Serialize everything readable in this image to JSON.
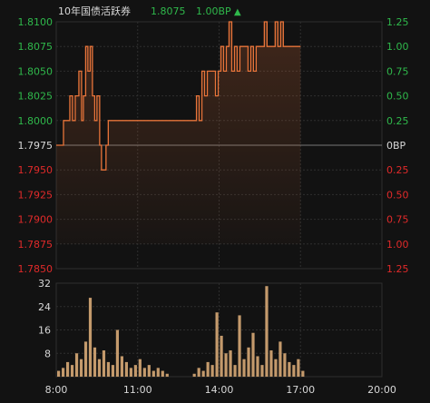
{
  "header": {
    "name": "10年国债活跃券",
    "price": "1.8075",
    "change": "1.00BP",
    "arrow": "▲"
  },
  "colors": {
    "background": "#121212",
    "grid": "#2e2e2e",
    "up": "#2fb84b",
    "down": "#e02a2a",
    "line": "#e8743a",
    "volume": "#c49a6c",
    "text": "#d8d8d8"
  },
  "chart_data": [
    {
      "type": "line",
      "x_labels": [
        "8:00",
        "11:00",
        "14:00",
        "17:00",
        "20:00"
      ],
      "ylim": [
        1.785,
        1.81
      ],
      "y_ticks_left": [
        "1.8100",
        "1.8075",
        "1.8050",
        "1.8025",
        "1.8000",
        "1.7975",
        "1.7950",
        "1.7925",
        "1.7900",
        "1.7875",
        "1.7850"
      ],
      "y_ticks_right": [
        "1.25",
        "1.00",
        "0.75",
        "0.50",
        "0.25",
        "0BP",
        "0.25",
        "0.50",
        "0.75",
        "1.00",
        "1.25"
      ],
      "reference_value": 1.7975,
      "series": [
        {
          "x": [
            "8:00",
            "8:10",
            "8:16",
            "8:22",
            "8:30",
            "8:36",
            "8:42",
            "8:50",
            "8:56",
            "9:00",
            "9:05",
            "9:10",
            "9:15",
            "9:20",
            "9:25",
            "9:30",
            "9:36",
            "9:40",
            "9:45",
            "9:50",
            "9:55",
            "10:00",
            "10:06",
            "10:12",
            "10:18",
            "10:24",
            "10:30",
            "10:36",
            "10:42",
            "10:48",
            "10:54",
            "11:00",
            "11:06",
            "11:12",
            "11:18",
            "11:24",
            "11:30",
            "11:36",
            "11:42",
            "11:48",
            "11:54",
            "12:00",
            "12:30",
            "13:00",
            "13:10",
            "13:16",
            "13:22",
            "13:28",
            "13:34",
            "13:40",
            "13:46",
            "13:52",
            "13:58",
            "14:04",
            "14:10",
            "14:16",
            "14:22",
            "14:28",
            "14:34",
            "14:40",
            "14:46",
            "14:52",
            "14:58",
            "15:04",
            "15:10",
            "15:16",
            "15:22",
            "15:28",
            "15:34",
            "15:40",
            "15:46",
            "15:52",
            "15:58",
            "16:04",
            "16:10",
            "16:16",
            "16:22",
            "16:28",
            "16:34",
            "16:40",
            "16:46",
            "16:52",
            "16:58",
            "17:00"
          ],
          "y": [
            1.7975,
            1.7975,
            1.8,
            1.8,
            1.8025,
            1.8,
            1.8025,
            1.805,
            1.8,
            1.8025,
            1.8075,
            1.805,
            1.8075,
            1.8025,
            1.8,
            1.8025,
            1.7975,
            1.795,
            1.795,
            1.7975,
            1.8,
            1.8,
            1.8,
            1.8,
            1.8,
            1.8,
            1.8,
            1.8,
            1.8,
            1.8,
            1.8,
            1.8,
            1.8,
            1.8,
            1.8,
            1.8,
            1.8,
            1.8,
            1.8,
            1.8,
            1.8,
            1.8,
            1.8,
            1.8,
            1.8025,
            1.8,
            1.805,
            1.8025,
            1.805,
            1.805,
            1.805,
            1.8025,
            1.805,
            1.8075,
            1.805,
            1.8075,
            1.81,
            1.805,
            1.8075,
            1.805,
            1.8075,
            1.8075,
            1.8075,
            1.805,
            1.8075,
            1.805,
            1.8075,
            1.8075,
            1.8075,
            1.81,
            1.8075,
            1.8075,
            1.8075,
            1.81,
            1.8075,
            1.81,
            1.8075,
            1.8075,
            1.8075,
            1.8075,
            1.8075,
            1.8075,
            1.8075,
            1.8075
          ]
        }
      ]
    },
    {
      "type": "bar",
      "ylim": [
        0,
        32
      ],
      "y_ticks": [
        "32",
        "24",
        "16",
        "8"
      ],
      "x_labels": [
        "8:00",
        "11:00",
        "14:00",
        "17:00",
        "20:00"
      ],
      "categories": [
        "8:00",
        "8:10",
        "8:20",
        "8:30",
        "8:40",
        "8:50",
        "9:00",
        "9:10",
        "9:20",
        "9:30",
        "9:40",
        "9:50",
        "10:00",
        "10:10",
        "10:20",
        "10:30",
        "10:40",
        "10:50",
        "11:00",
        "11:10",
        "11:20",
        "11:30",
        "11:40",
        "11:50",
        "12:00",
        "13:00",
        "13:10",
        "13:20",
        "13:30",
        "13:40",
        "13:50",
        "14:00",
        "14:10",
        "14:20",
        "14:30",
        "14:40",
        "14:50",
        "15:00",
        "15:10",
        "15:20",
        "15:30",
        "15:40",
        "15:50",
        "16:00",
        "16:10",
        "16:20",
        "16:30",
        "16:40",
        "16:50",
        "17:00"
      ],
      "values": [
        2,
        3,
        5,
        4,
        8,
        6,
        12,
        27,
        10,
        6,
        9,
        5,
        4,
        16,
        7,
        5,
        3,
        4,
        6,
        3,
        4,
        2,
        3,
        2,
        1,
        1,
        3,
        2,
        5,
        4,
        22,
        14,
        8,
        9,
        4,
        21,
        6,
        10,
        15,
        7,
        4,
        31,
        9,
        6,
        12,
        8,
        5,
        4,
        6,
        2
      ]
    }
  ]
}
